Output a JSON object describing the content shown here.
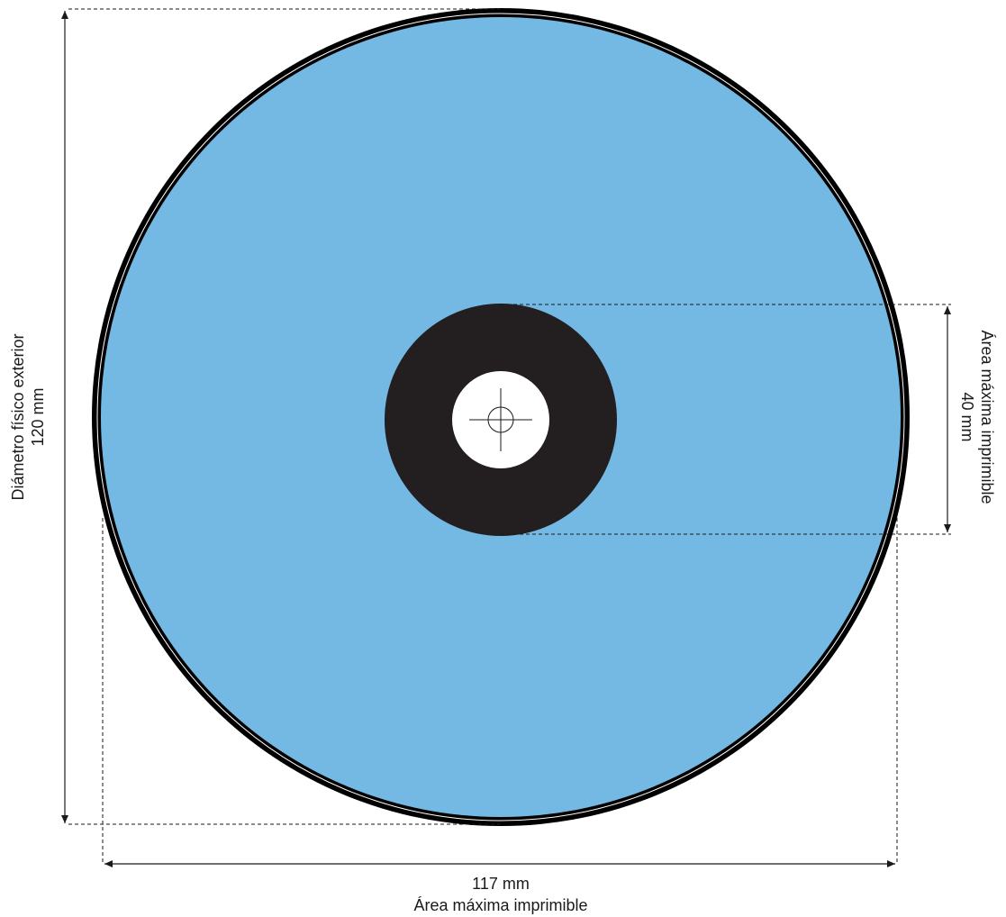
{
  "colors": {
    "disc_fill": "#73b9e4",
    "disc_rim": "#000000",
    "hub": "#231f20",
    "center_hole": "#ffffff",
    "lines": "#1a1a1a"
  },
  "dimensions": {
    "outer": {
      "value": "120 mm",
      "label": "Diámetro físico exterior"
    },
    "printable_outer": {
      "value": "117  mm",
      "label": "Área máxima imprimible"
    },
    "printable_inner": {
      "value": "40  mm",
      "label": "Área máxima imprimible"
    }
  },
  "icons": {
    "center_mark": "crosshair-icon"
  }
}
